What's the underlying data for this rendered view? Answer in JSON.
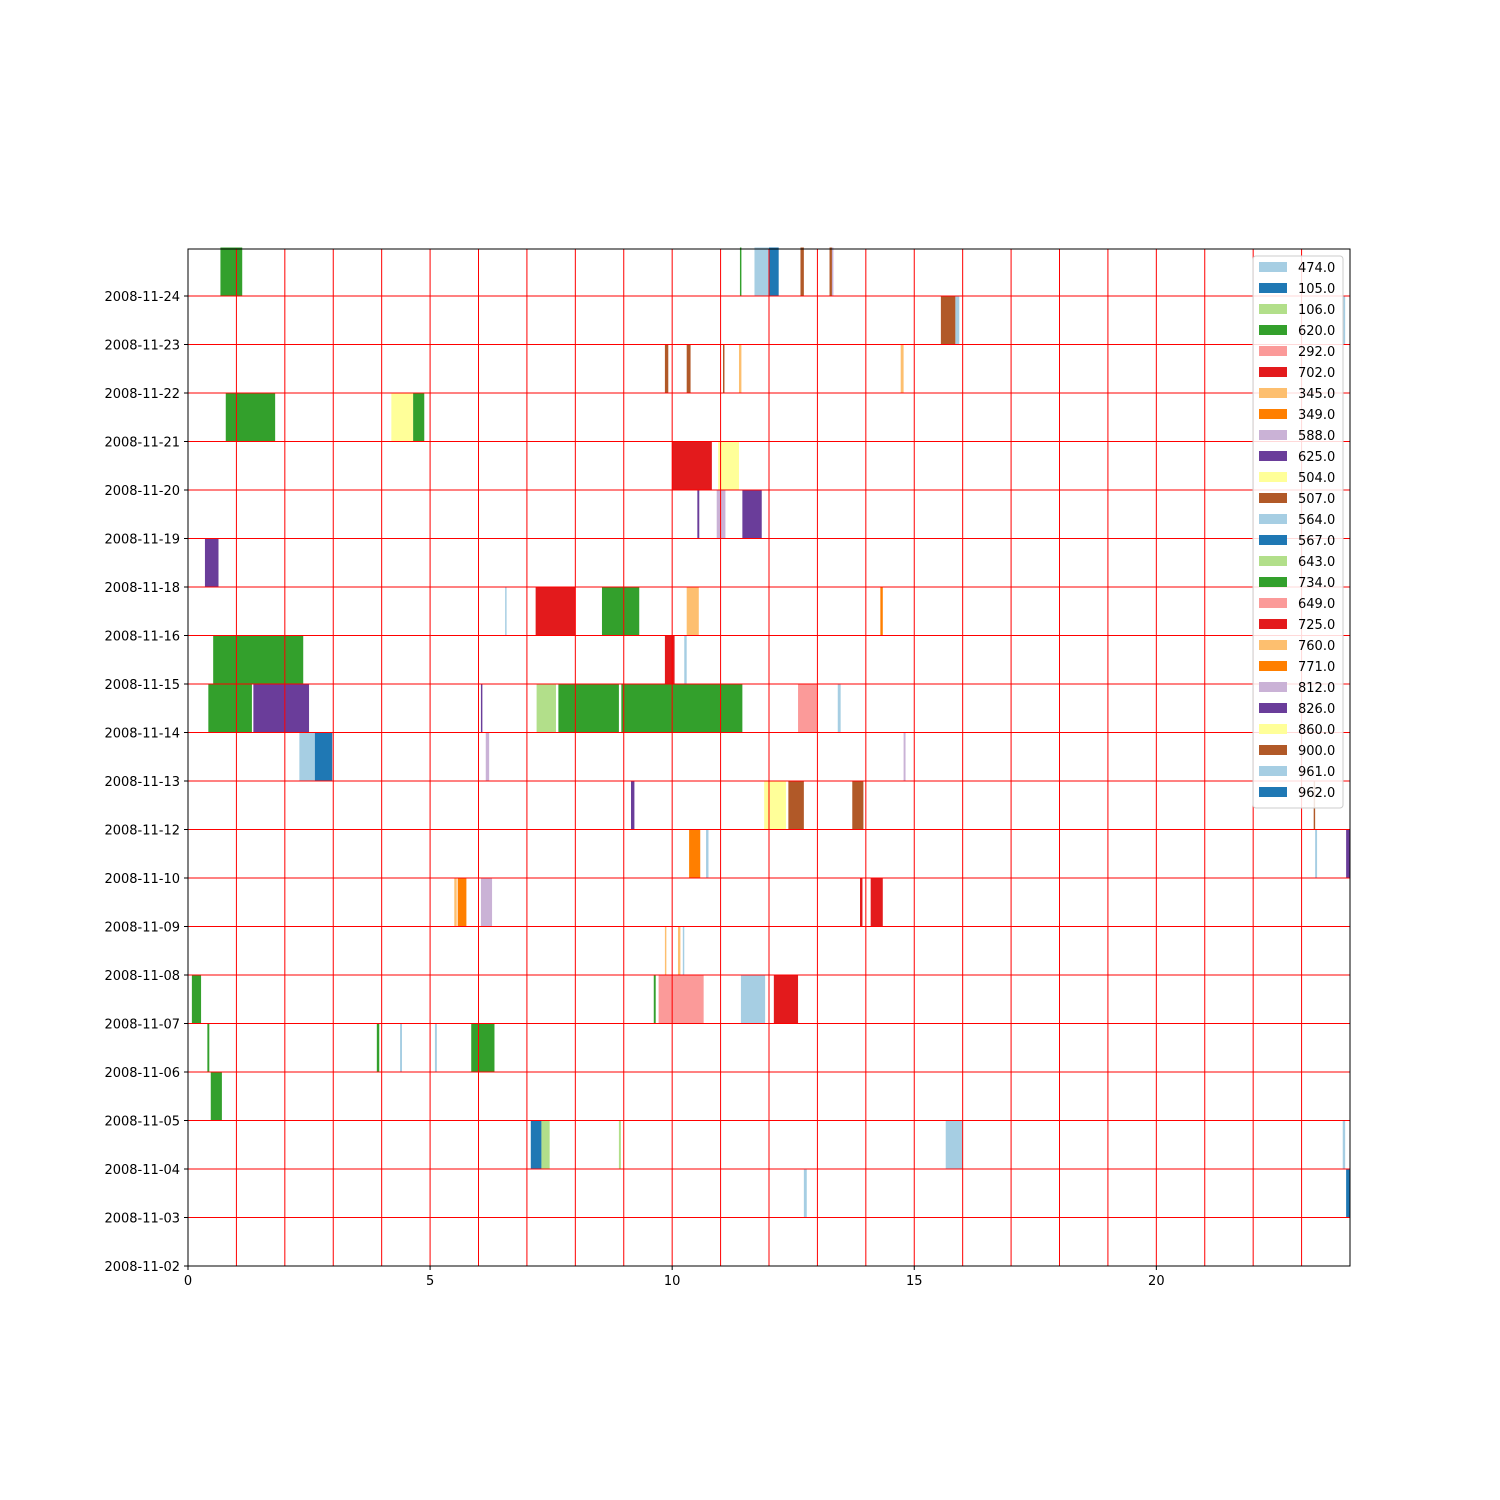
{
  "chart_data": {
    "type": "bar",
    "title": "",
    "xlabel": "",
    "ylabel": "",
    "xlim": [
      0,
      24
    ],
    "x_ticks": [
      {
        "value": 0,
        "label": "0"
      },
      {
        "value": 5,
        "label": "5"
      },
      {
        "value": 10,
        "label": "10"
      },
      {
        "value": 15,
        "label": "15"
      },
      {
        "value": 20,
        "label": "20"
      }
    ],
    "y_categories": [
      "2008-11-02",
      "2008-11-03",
      "2008-11-04",
      "2008-11-05",
      "2008-11-06",
      "2008-11-07",
      "2008-11-08",
      "2008-11-09",
      "2008-11-10",
      "2008-11-12",
      "2008-11-13",
      "2008-11-14",
      "2008-11-15",
      "2008-11-16",
      "2008-11-18",
      "2008-11-19",
      "2008-11-20",
      "2008-11-21",
      "2008-11-22",
      "2008-11-23",
      "2008-11-24"
    ],
    "grid": true,
    "grid_color": "#ff0000",
    "legend_placement": "top-right",
    "legend": [
      {
        "label": "474.0",
        "color": "#a6cee3"
      },
      {
        "label": "105.0",
        "color": "#1f78b4"
      },
      {
        "label": "106.0",
        "color": "#b2df8a"
      },
      {
        "label": "620.0",
        "color": "#33a02c"
      },
      {
        "label": "292.0",
        "color": "#fb9a99"
      },
      {
        "label": "702.0",
        "color": "#e31a1c"
      },
      {
        "label": "345.0",
        "color": "#fdbf6f"
      },
      {
        "label": "349.0",
        "color": "#ff7f00"
      },
      {
        "label": "588.0",
        "color": "#cab2d6"
      },
      {
        "label": "625.0",
        "color": "#6a3d9a"
      },
      {
        "label": "504.0",
        "color": "#ffff99"
      },
      {
        "label": "507.0",
        "color": "#b15928"
      },
      {
        "label": "564.0",
        "color": "#a6cee3"
      },
      {
        "label": "567.0",
        "color": "#1f78b4"
      },
      {
        "label": "643.0",
        "color": "#b2df8a"
      },
      {
        "label": "734.0",
        "color": "#33a02c"
      },
      {
        "label": "649.0",
        "color": "#fb9a99"
      },
      {
        "label": "725.0",
        "color": "#e31a1c"
      },
      {
        "label": "760.0",
        "color": "#fdbf6f"
      },
      {
        "label": "771.0",
        "color": "#ff7f00"
      },
      {
        "label": "812.0",
        "color": "#cab2d6"
      },
      {
        "label": "826.0",
        "color": "#6a3d9a"
      },
      {
        "label": "860.0",
        "color": "#ffff99"
      },
      {
        "label": "900.0",
        "color": "#b15928"
      },
      {
        "label": "961.0",
        "color": "#a6cee3"
      },
      {
        "label": "962.0",
        "color": "#1f78b4"
      }
    ],
    "bars": [
      {
        "row": 20,
        "start": 0.67,
        "end": 1.12,
        "color": "#33a02c"
      },
      {
        "row": 20,
        "start": 11.4,
        "end": 11.43,
        "color": "#33a02c"
      },
      {
        "row": 20,
        "start": 11.7,
        "end": 12.0,
        "color": "#a6cee3"
      },
      {
        "row": 20,
        "start": 12.0,
        "end": 12.2,
        "color": "#1f78b4"
      },
      {
        "row": 20,
        "start": 12.65,
        "end": 12.72,
        "color": "#b15928"
      },
      {
        "row": 20,
        "start": 13.25,
        "end": 13.3,
        "color": "#b15928"
      },
      {
        "row": 20,
        "start": 13.3,
        "end": 13.33,
        "color": "#cab2d6"
      },
      {
        "row": 19,
        "start": 15.55,
        "end": 15.85,
        "color": "#b15928"
      },
      {
        "row": 19,
        "start": 15.85,
        "end": 15.93,
        "color": "#a6cee3"
      },
      {
        "row": 19,
        "start": 23.85,
        "end": 23.9,
        "color": "#a6cee3"
      },
      {
        "row": 18,
        "start": 9.85,
        "end": 9.92,
        "color": "#b15928"
      },
      {
        "row": 18,
        "start": 10.3,
        "end": 10.38,
        "color": "#b15928"
      },
      {
        "row": 18,
        "start": 11.05,
        "end": 11.08,
        "color": "#b15928"
      },
      {
        "row": 18,
        "start": 11.38,
        "end": 11.43,
        "color": "#fdbf6f"
      },
      {
        "row": 18,
        "start": 14.72,
        "end": 14.78,
        "color": "#fdbf6f"
      },
      {
        "row": 17,
        "start": 0.78,
        "end": 1.8,
        "color": "#33a02c"
      },
      {
        "row": 17,
        "start": 4.2,
        "end": 4.65,
        "color": "#ffff99"
      },
      {
        "row": 17,
        "start": 4.65,
        "end": 4.88,
        "color": "#33a02c"
      },
      {
        "row": 16,
        "start": 10.0,
        "end": 10.82,
        "color": "#e31a1c"
      },
      {
        "row": 16,
        "start": 10.95,
        "end": 11.38,
        "color": "#ffff99"
      },
      {
        "row": 15,
        "start": 10.52,
        "end": 10.56,
        "color": "#6a3d9a"
      },
      {
        "row": 15,
        "start": 10.92,
        "end": 11.1,
        "color": "#cab2d6"
      },
      {
        "row": 15,
        "start": 11.45,
        "end": 11.85,
        "color": "#6a3d9a"
      },
      {
        "row": 14,
        "start": 0.35,
        "end": 0.63,
        "color": "#6a3d9a"
      },
      {
        "row": 13,
        "start": 6.55,
        "end": 6.58,
        "color": "#a6cee3"
      },
      {
        "row": 13,
        "start": 7.18,
        "end": 8.0,
        "color": "#e31a1c"
      },
      {
        "row": 13,
        "start": 8.55,
        "end": 9.32,
        "color": "#33a02c"
      },
      {
        "row": 13,
        "start": 10.3,
        "end": 10.55,
        "color": "#fdbf6f"
      },
      {
        "row": 13,
        "start": 14.3,
        "end": 14.35,
        "color": "#ff7f00"
      },
      {
        "row": 12,
        "start": 0.52,
        "end": 2.38,
        "color": "#33a02c"
      },
      {
        "row": 12,
        "start": 9.85,
        "end": 10.05,
        "color": "#e31a1c"
      },
      {
        "row": 12,
        "start": 10.25,
        "end": 10.3,
        "color": "#a6cee3"
      },
      {
        "row": 11,
        "start": 0.42,
        "end": 1.32,
        "color": "#33a02c"
      },
      {
        "row": 11,
        "start": 1.35,
        "end": 2.5,
        "color": "#6a3d9a"
      },
      {
        "row": 11,
        "start": 6.05,
        "end": 6.08,
        "color": "#6a3d9a"
      },
      {
        "row": 11,
        "start": 7.2,
        "end": 7.6,
        "color": "#b2df8a"
      },
      {
        "row": 11,
        "start": 7.65,
        "end": 8.9,
        "color": "#33a02c"
      },
      {
        "row": 11,
        "start": 8.95,
        "end": 11.45,
        "color": "#33a02c"
      },
      {
        "row": 11,
        "start": 12.6,
        "end": 13.0,
        "color": "#fb9a99"
      },
      {
        "row": 11,
        "start": 13.42,
        "end": 13.48,
        "color": "#a6cee3"
      },
      {
        "row": 10,
        "start": 2.3,
        "end": 2.62,
        "color": "#a6cee3"
      },
      {
        "row": 10,
        "start": 2.62,
        "end": 2.98,
        "color": "#1f78b4"
      },
      {
        "row": 10,
        "start": 6.15,
        "end": 6.22,
        "color": "#cab2d6"
      },
      {
        "row": 10,
        "start": 14.78,
        "end": 14.82,
        "color": "#cab2d6"
      },
      {
        "row": 9,
        "start": 9.15,
        "end": 9.22,
        "color": "#6a3d9a"
      },
      {
        "row": 9,
        "start": 11.9,
        "end": 12.35,
        "color": "#ffff99"
      },
      {
        "row": 9,
        "start": 12.4,
        "end": 12.72,
        "color": "#b15928"
      },
      {
        "row": 9,
        "start": 13.72,
        "end": 13.95,
        "color": "#b15928"
      },
      {
        "row": 9,
        "start": 23.25,
        "end": 23.28,
        "color": "#b15928"
      },
      {
        "row": 8,
        "start": 10.35,
        "end": 10.58,
        "color": "#ff7f00"
      },
      {
        "row": 8,
        "start": 10.7,
        "end": 10.75,
        "color": "#a6cee3"
      },
      {
        "row": 8,
        "start": 23.28,
        "end": 23.32,
        "color": "#a6cee3"
      },
      {
        "row": 8,
        "start": 23.92,
        "end": 24.0,
        "color": "#6a3d9a"
      },
      {
        "row": 7,
        "start": 5.5,
        "end": 5.55,
        "color": "#fdbf6f"
      },
      {
        "row": 7,
        "start": 5.57,
        "end": 5.75,
        "color": "#ff7f00"
      },
      {
        "row": 7,
        "start": 6.05,
        "end": 6.28,
        "color": "#cab2d6"
      },
      {
        "row": 7,
        "start": 13.88,
        "end": 13.93,
        "color": "#e31a1c"
      },
      {
        "row": 7,
        "start": 14.1,
        "end": 14.35,
        "color": "#e31a1c"
      },
      {
        "row": 6,
        "start": 9.85,
        "end": 9.88,
        "color": "#fdbf6f"
      },
      {
        "row": 6,
        "start": 10.12,
        "end": 10.17,
        "color": "#fdbf6f"
      },
      {
        "row": 6,
        "start": 10.22,
        "end": 10.25,
        "color": "#a6cee3"
      },
      {
        "row": 5,
        "start": 0.08,
        "end": 0.27,
        "color": "#33a02c"
      },
      {
        "row": 5,
        "start": 9.62,
        "end": 9.66,
        "color": "#33a02c"
      },
      {
        "row": 5,
        "start": 9.72,
        "end": 10.65,
        "color": "#fb9a99"
      },
      {
        "row": 5,
        "start": 11.42,
        "end": 11.92,
        "color": "#a6cee3"
      },
      {
        "row": 5,
        "start": 12.1,
        "end": 12.6,
        "color": "#e31a1c"
      },
      {
        "row": 4,
        "start": 0.4,
        "end": 0.44,
        "color": "#33a02c"
      },
      {
        "row": 4,
        "start": 3.9,
        "end": 3.95,
        "color": "#33a02c"
      },
      {
        "row": 4,
        "start": 4.38,
        "end": 4.42,
        "color": "#a6cee3"
      },
      {
        "row": 4,
        "start": 5.1,
        "end": 5.14,
        "color": "#a6cee3"
      },
      {
        "row": 4,
        "start": 5.85,
        "end": 6.33,
        "color": "#33a02c"
      },
      {
        "row": 3,
        "start": 0.47,
        "end": 0.7,
        "color": "#33a02c"
      },
      {
        "row": 2,
        "start": 7.08,
        "end": 7.3,
        "color": "#1f78b4"
      },
      {
        "row": 2,
        "start": 7.3,
        "end": 7.47,
        "color": "#b2df8a"
      },
      {
        "row": 2,
        "start": 8.9,
        "end": 8.94,
        "color": "#b2df8a"
      },
      {
        "row": 2,
        "start": 15.65,
        "end": 16.0,
        "color": "#a6cee3"
      },
      {
        "row": 2,
        "start": 23.85,
        "end": 23.9,
        "color": "#a6cee3"
      },
      {
        "row": 1,
        "start": 12.72,
        "end": 12.78,
        "color": "#a6cee3"
      },
      {
        "row": 1,
        "start": 23.92,
        "end": 24.0,
        "color": "#1f78b4"
      }
    ]
  }
}
